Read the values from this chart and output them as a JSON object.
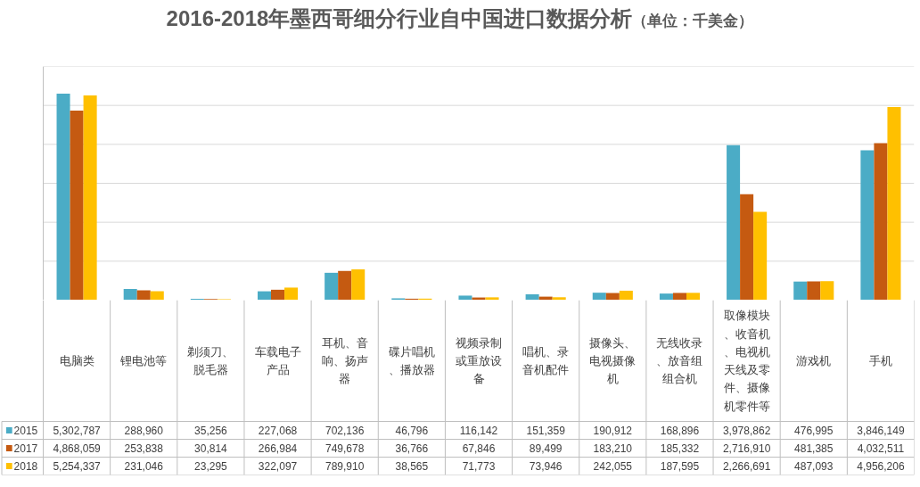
{
  "chart_data": {
    "type": "bar",
    "title": "2016-2018年墨西哥细分行业自中国进口数据分析",
    "subtitle": "（单位：千美金）",
    "categories": [
      "电脑类",
      "锂电池等",
      "剃须刀、脱毛器",
      "车载电子产品",
      "耳机、音响、扬声器",
      "碟片唱机、播放器",
      "视频录制或重放设备",
      "唱机、录音机配件",
      "摄像头、电视摄像机",
      "无线收录、放音组组合机",
      "取像模块、收音机、电视机天线及零件、摄像机零件等",
      "游戏机",
      "手机"
    ],
    "series": [
      {
        "name": "2015",
        "color": "#4bacc6",
        "values": [
          5302787,
          288960,
          35256,
          227068,
          702136,
          46796,
          116142,
          151359,
          190912,
          168896,
          3978862,
          476995,
          3846149
        ],
        "value_labels": [
          "5,302,787",
          "288,960",
          "35,256",
          "227,068",
          "702,136",
          "46,796",
          "116,142",
          "151,359",
          "190,912",
          "168,896",
          "3,978,862",
          "476,995",
          "3,846,149"
        ]
      },
      {
        "name": "2017",
        "color": "#c55a11",
        "values": [
          4868059,
          253838,
          30814,
          266984,
          749678,
          36766,
          67846,
          89499,
          183210,
          185332,
          2716910,
          481385,
          4032511
        ],
        "value_labels": [
          "4,868,059",
          "253,838",
          "30,814",
          "266,984",
          "749,678",
          "36,766",
          "67,846",
          "89,499",
          "183,210",
          "185,332",
          "2,716,910",
          "481,385",
          "4,032,511"
        ]
      },
      {
        "name": "2018",
        "color": "#ffc000",
        "values": [
          5254337,
          231046,
          23295,
          322097,
          789910,
          38565,
          71773,
          73946,
          242055,
          187595,
          2266691,
          487093,
          4956206
        ],
        "value_labels": [
          "5,254,337",
          "231,046",
          "23,295",
          "322,097",
          "789,910",
          "38,565",
          "71,773",
          "73,946",
          "242,055",
          "187,595",
          "2,266,691",
          "487,093",
          "4,956,206"
        ]
      }
    ],
    "ylim": [
      0,
      6000000
    ],
    "yticks": [
      {
        "value": 1000000,
        "label": null
      },
      {
        "value": 2000000,
        "label": null
      },
      {
        "value": 3000000,
        "label": null
      },
      {
        "value": 4000000,
        "label": null
      },
      {
        "value": 5000000,
        "label": null
      },
      {
        "value": 6000000,
        "label": null
      }
    ],
    "grid": "y",
    "legend": "bottom left",
    "tick_labels": "x"
  }
}
